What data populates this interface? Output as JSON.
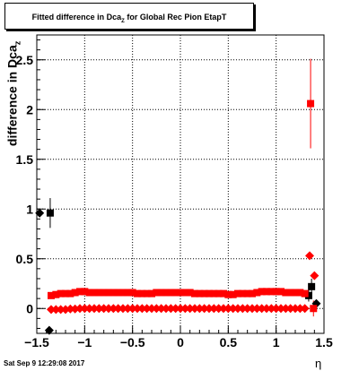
{
  "chart_data": {
    "type": "scatter",
    "title_main": "Fitted difference in Dca",
    "title_sub": "Z",
    "title_rest": " for Global Rec Pion EtapT",
    "ylabel_main": "difference in Dca",
    "ylabel_sub": "z",
    "xlabel": "η",
    "xlim": [
      -1.5,
      1.5
    ],
    "ylim": [
      -0.25,
      2.75
    ],
    "x_ticks": [
      -1.5,
      -1,
      -0.5,
      0,
      0.5,
      1,
      1.5
    ],
    "x_tick_labels": [
      "−1.5",
      "−1",
      "−0.5",
      "0",
      "0.5",
      "1",
      "1.5"
    ],
    "y_ticks": [
      0,
      0.5,
      1,
      1.5,
      2,
      2.5
    ],
    "y_tick_labels": [
      "0",
      "0.5",
      "1",
      "1.5",
      "2",
      "2.5"
    ],
    "grid": true,
    "series": [
      {
        "color": "#000000",
        "marker": "diamond",
        "points": [
          [
            -1.47,
            0.96,
            0
          ],
          [
            -1.37,
            -0.22,
            0.04
          ],
          [
            1.42,
            0.05,
            0
          ]
        ]
      },
      {
        "color": "#000000",
        "marker": "square",
        "points": [
          [
            -1.36,
            0.96,
            0.15
          ],
          [
            1.34,
            0.13,
            0.06
          ],
          [
            1.37,
            0.22,
            0.08
          ]
        ]
      },
      {
        "color": "#ff0000",
        "marker": "diamond",
        "points": [
          [
            -1.35,
            -0.01,
            0
          ],
          [
            -1.3,
            -0.01,
            0
          ],
          [
            -1.25,
            -0.01,
            0
          ],
          [
            -1.2,
            -0.01,
            0
          ],
          [
            -1.15,
            -0.005,
            0
          ],
          [
            -1.1,
            -0.005,
            0
          ],
          [
            -1.05,
            0.0,
            0
          ],
          [
            -1.0,
            0.0,
            0
          ],
          [
            -0.95,
            0.0,
            0
          ],
          [
            -0.9,
            0.0,
            0
          ],
          [
            -0.85,
            0.0,
            0
          ],
          [
            -0.8,
            0.0,
            0
          ],
          [
            -0.75,
            0.0,
            0
          ],
          [
            -0.7,
            0.0,
            0
          ],
          [
            -0.65,
            0.0,
            0
          ],
          [
            -0.6,
            0.0,
            0
          ],
          [
            -0.55,
            0.0,
            0
          ],
          [
            -0.5,
            0.0,
            0
          ],
          [
            -0.45,
            0.0,
            0
          ],
          [
            -0.4,
            0.0,
            0
          ],
          [
            -0.35,
            0.0,
            0
          ],
          [
            -0.3,
            0.0,
            0
          ],
          [
            -0.25,
            0.0,
            0
          ],
          [
            -0.2,
            0.0,
            0
          ],
          [
            -0.15,
            0.0,
            0
          ],
          [
            -0.1,
            0.0,
            0
          ],
          [
            -0.05,
            0.0,
            0
          ],
          [
            0.0,
            0.0,
            0
          ],
          [
            0.05,
            0.0,
            0
          ],
          [
            0.1,
            0.0,
            0
          ],
          [
            0.15,
            0.0,
            0
          ],
          [
            0.2,
            0.0,
            0
          ],
          [
            0.25,
            0.0,
            0
          ],
          [
            0.3,
            0.0,
            0
          ],
          [
            0.35,
            0.0,
            0
          ],
          [
            0.4,
            0.0,
            0
          ],
          [
            0.45,
            0.0,
            0
          ],
          [
            0.5,
            0.0,
            0
          ],
          [
            0.55,
            0.0,
            0
          ],
          [
            0.6,
            0.0,
            0
          ],
          [
            0.65,
            0.0,
            0
          ],
          [
            0.7,
            0.0,
            0
          ],
          [
            0.75,
            0.0,
            0
          ],
          [
            0.8,
            0.0,
            0
          ],
          [
            0.85,
            0.0,
            0
          ],
          [
            0.9,
            0.0,
            0
          ],
          [
            0.95,
            0.0,
            0
          ],
          [
            1.0,
            0.0,
            0
          ],
          [
            1.05,
            0.0,
            0
          ],
          [
            1.1,
            0.0,
            0
          ],
          [
            1.15,
            0.0,
            0
          ],
          [
            1.2,
            0.0,
            0
          ],
          [
            1.25,
            0.0,
            0
          ],
          [
            1.3,
            0.0,
            0
          ],
          [
            1.35,
            0.53,
            0
          ],
          [
            1.4,
            0.33,
            0
          ]
        ]
      },
      {
        "color": "#ff0000",
        "marker": "square",
        "points": [
          [
            -1.35,
            0.13,
            0
          ],
          [
            -1.3,
            0.14,
            0
          ],
          [
            -1.25,
            0.15,
            0
          ],
          [
            -1.2,
            0.15,
            0
          ],
          [
            -1.15,
            0.15,
            0
          ],
          [
            -1.1,
            0.16,
            0
          ],
          [
            -1.05,
            0.17,
            0
          ],
          [
            -1.0,
            0.17,
            0
          ],
          [
            -0.95,
            0.16,
            0
          ],
          [
            -0.9,
            0.16,
            0
          ],
          [
            -0.85,
            0.16,
            0
          ],
          [
            -0.8,
            0.16,
            0
          ],
          [
            -0.75,
            0.16,
            0
          ],
          [
            -0.7,
            0.16,
            0
          ],
          [
            -0.65,
            0.16,
            0
          ],
          [
            -0.6,
            0.16,
            0
          ],
          [
            -0.55,
            0.16,
            0
          ],
          [
            -0.5,
            0.16,
            0
          ],
          [
            -0.45,
            0.15,
            0
          ],
          [
            -0.4,
            0.15,
            0
          ],
          [
            -0.35,
            0.15,
            0
          ],
          [
            -0.3,
            0.15,
            0
          ],
          [
            -0.25,
            0.16,
            0
          ],
          [
            -0.2,
            0.16,
            0
          ],
          [
            -0.15,
            0.16,
            0
          ],
          [
            -0.1,
            0.16,
            0
          ],
          [
            -0.05,
            0.16,
            0
          ],
          [
            0.0,
            0.16,
            0
          ],
          [
            0.05,
            0.16,
            0
          ],
          [
            0.1,
            0.16,
            0
          ],
          [
            0.15,
            0.15,
            0
          ],
          [
            0.2,
            0.15,
            0
          ],
          [
            0.25,
            0.15,
            0
          ],
          [
            0.3,
            0.15,
            0
          ],
          [
            0.35,
            0.15,
            0
          ],
          [
            0.4,
            0.15,
            0
          ],
          [
            0.45,
            0.15,
            0
          ],
          [
            0.5,
            0.14,
            0
          ],
          [
            0.55,
            0.14,
            0
          ],
          [
            0.6,
            0.15,
            0
          ],
          [
            0.65,
            0.15,
            0
          ],
          [
            0.7,
            0.15,
            0
          ],
          [
            0.75,
            0.15,
            0
          ],
          [
            0.8,
            0.16,
            0
          ],
          [
            0.85,
            0.17,
            0
          ],
          [
            0.9,
            0.17,
            0
          ],
          [
            0.95,
            0.17,
            0
          ],
          [
            1.0,
            0.17,
            0
          ],
          [
            1.05,
            0.17,
            0
          ],
          [
            1.1,
            0.16,
            0
          ],
          [
            1.15,
            0.16,
            0
          ],
          [
            1.2,
            0.16,
            0
          ],
          [
            1.25,
            0.16,
            0
          ],
          [
            1.3,
            0.15,
            0
          ],
          [
            1.36,
            2.06,
            0.45
          ],
          [
            1.39,
            0.0,
            0.08
          ]
        ]
      }
    ]
  },
  "timestamp": "Sat Sep  9 12:29:08 2017"
}
